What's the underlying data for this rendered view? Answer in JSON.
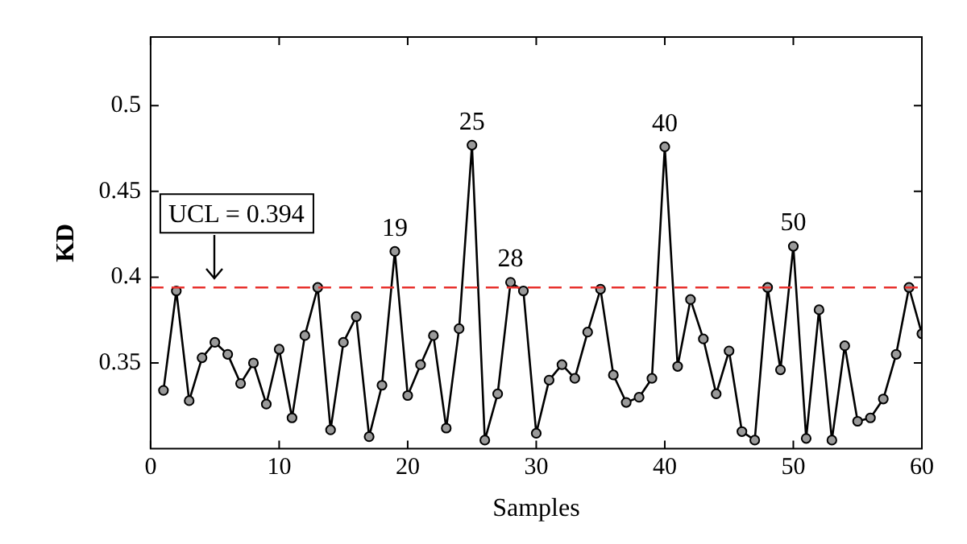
{
  "chart_data": {
    "type": "line",
    "xlabel": "Samples",
    "ylabel": "KD",
    "x": [
      1,
      2,
      3,
      4,
      5,
      6,
      7,
      8,
      9,
      10,
      11,
      12,
      13,
      14,
      15,
      16,
      17,
      18,
      19,
      20,
      21,
      22,
      23,
      24,
      25,
      26,
      27,
      28,
      29,
      30,
      31,
      32,
      33,
      34,
      35,
      36,
      37,
      38,
      39,
      40,
      41,
      42,
      43,
      44,
      45,
      46,
      47,
      48,
      49,
      50,
      51,
      52,
      53,
      54,
      55,
      56,
      57,
      58,
      59,
      60
    ],
    "series": [
      {
        "color": "#000000",
        "values": [
          0.334,
          0.392,
          0.328,
          0.353,
          0.362,
          0.355,
          0.338,
          0.35,
          0.326,
          0.358,
          0.318,
          0.366,
          0.394,
          0.311,
          0.362,
          0.377,
          0.307,
          0.337,
          0.415,
          0.331,
          0.349,
          0.366,
          0.312,
          0.37,
          0.477,
          0.305,
          0.332,
          0.397,
          0.392,
          0.309,
          0.34,
          0.349,
          0.341,
          0.368,
          0.393,
          0.343,
          0.327,
          0.33,
          0.341,
          0.476,
          0.348,
          0.387,
          0.364,
          0.332,
          0.357,
          0.31,
          0.305,
          0.394,
          0.346,
          0.418,
          0.306,
          0.381,
          0.305,
          0.36,
          0.316,
          0.318,
          0.329,
          0.355,
          0.394,
          0.367
        ]
      }
    ],
    "xlim": [
      0,
      60
    ],
    "xticks": [
      0,
      10,
      20,
      30,
      40,
      50,
      60
    ],
    "ylim": [
      0.3,
      0.54
    ],
    "yticks": [
      0.35,
      0.4,
      0.45,
      0.5
    ],
    "ref_lines": [
      {
        "axis": "y",
        "value": 0.394,
        "label": "UCL = 0.394",
        "color": "#e8322e",
        "line_style": "dashed"
      }
    ],
    "annotations": [
      {
        "text": "19",
        "x": 19,
        "y": 0.415
      },
      {
        "text": "25",
        "x": 25,
        "y": 0.477
      },
      {
        "text": "28",
        "x": 28,
        "y": 0.397
      },
      {
        "text": "40",
        "x": 40,
        "y": 0.476
      },
      {
        "text": "50",
        "x": 50,
        "y": 0.418
      }
    ],
    "marker": "circle",
    "line_style": "solid",
    "grid": false,
    "legend": false
  }
}
